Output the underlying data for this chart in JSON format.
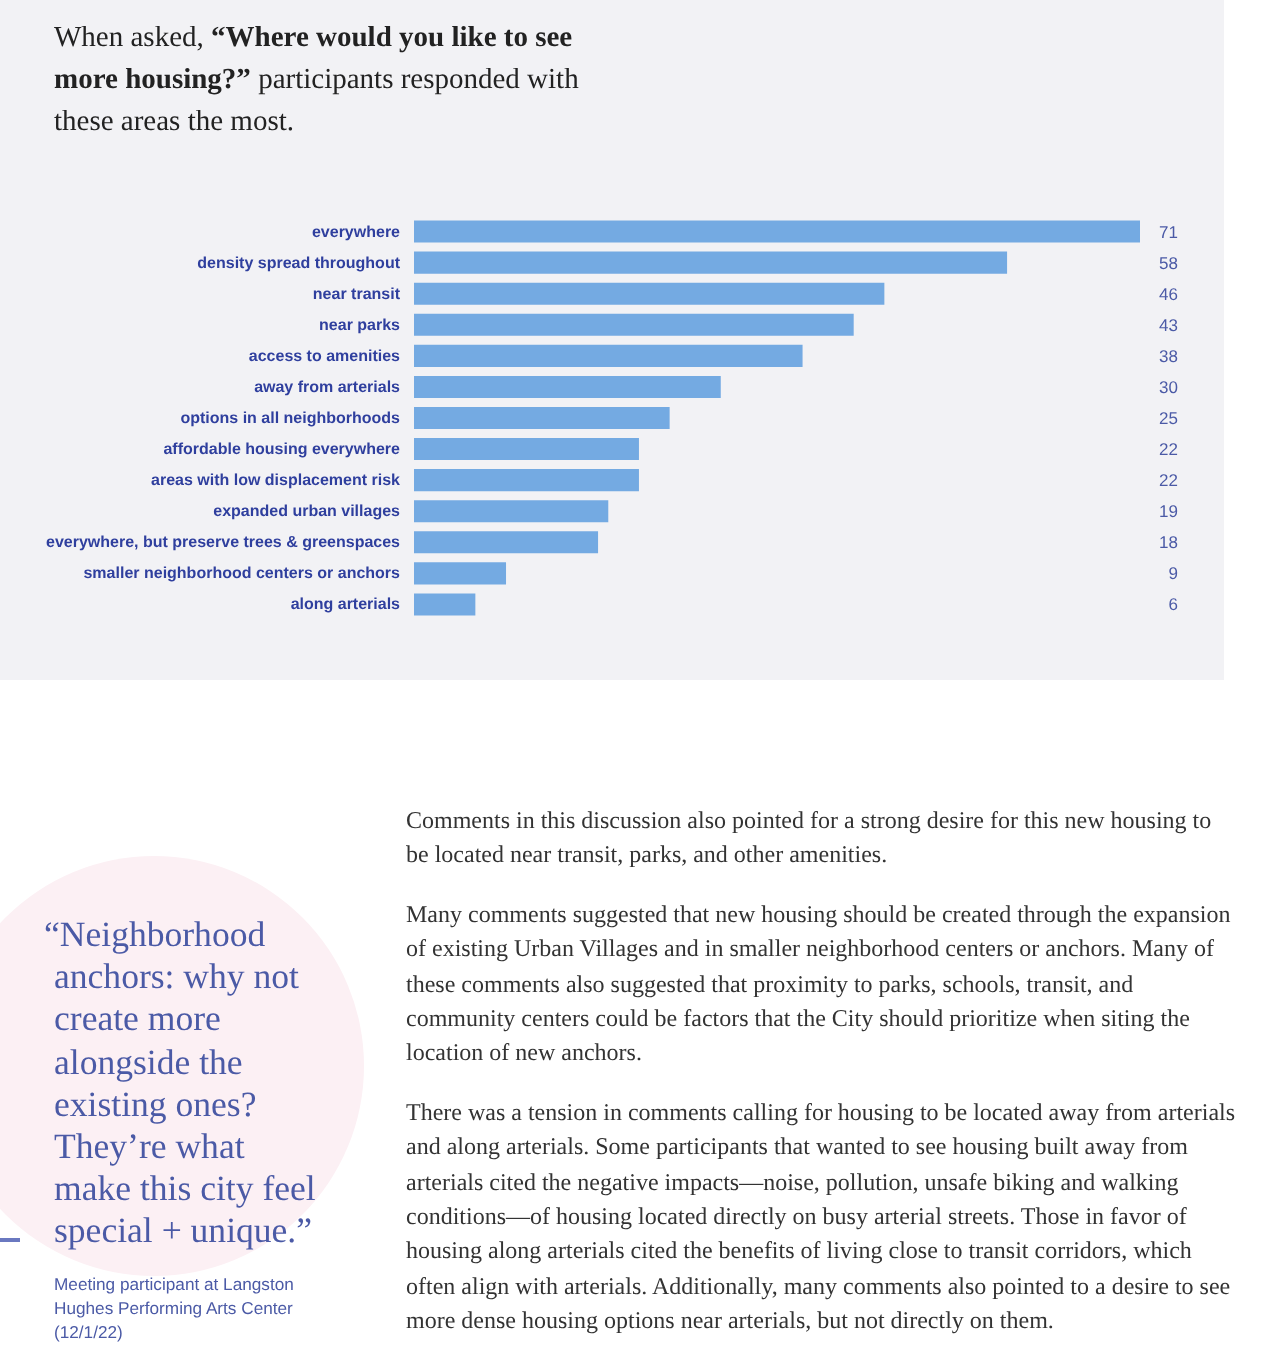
{
  "chart_data": {
    "type": "bar",
    "orientation": "horizontal",
    "title": "When asked, “Where would you like to see more housing?” participants responded with these areas the most.",
    "categories": [
      "everywhere",
      "density spread throughout",
      "near transit",
      "near parks",
      "access to amenities",
      "away from arterials",
      "options in all neighborhoods",
      "affordable housing everywhere",
      "areas with low displacement risk",
      "expanded urban villages",
      "everywhere, but preserve trees & greenspaces",
      "smaller neighborhood centers or anchors",
      "along arterials"
    ],
    "values": [
      71,
      58,
      46,
      43,
      38,
      30,
      25,
      22,
      22,
      19,
      18,
      9,
      6
    ],
    "color": "#74aae2",
    "data_labels": true,
    "annotations": [
      "Comments in this discussion also pointed for a strong desire for this new housing to be located near transit, parks, and other amenities.",
      "Many comments suggested that new housing should be created through the expansion of existing Urban Villages and in smaller neighborhood centers or anchors. Many of these comments also suggested that proximity to parks, schools, transit, and community centers could be factors that the City should prioritize when siting the location of new anchors.",
      "There was a tension in comments calling for housing to be located away from arterials and along arterials. Some participants that wanted to see housing built away from arterials cited the negative impacts—noise, pollution, unsafe biking and walking conditions—of housing located directly on busy arterial streets. Those in favor of housing along arterials cited the benefits of living close to transit corridors, which often align with arterials. Additionally, many comments also pointed to a desire to see more dense housing options near arterials, but not directly on them.",
      "“Neighborhood anchors: why not create more alongside the existing ones? They’re what make this city feel special + unique.”",
      "Meeting participant at Langston Hughes Performing Arts Center (12/1/22)"
    ]
  }
}
